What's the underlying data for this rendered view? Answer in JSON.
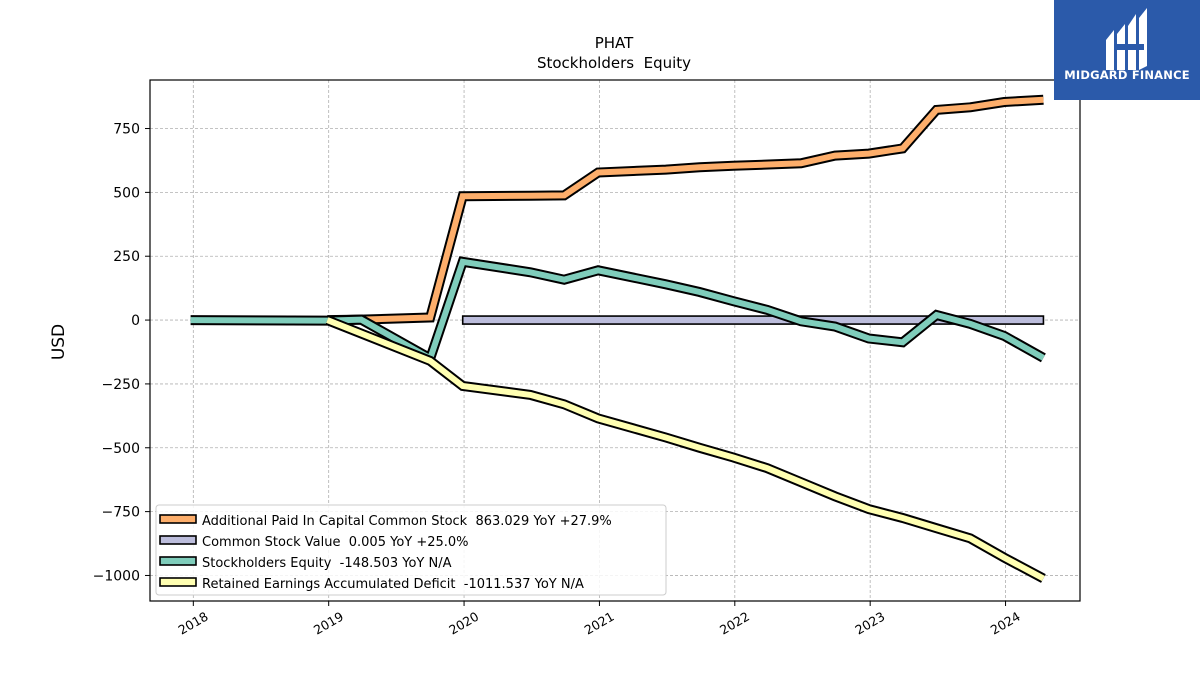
{
  "chart_data": {
    "type": "line",
    "title": "PHAT",
    "subtitle": "Stockholders  Equity",
    "ylabel": "USD",
    "xlabel": "",
    "ylim": [
      -1100,
      940
    ],
    "xlim": [
      2017.68,
      2024.55
    ],
    "yticks": [
      750,
      500,
      250,
      0,
      -250,
      -500,
      -750,
      -1000
    ],
    "ytick_labels": [
      "750",
      "500",
      "250",
      "0",
      "−250",
      "−500",
      "−750",
      "−1000"
    ],
    "xticks": [
      2018,
      2019,
      2020,
      2021,
      2022,
      2023,
      2024
    ],
    "xtick_labels": [
      "2018",
      "2019",
      "2020",
      "2021",
      "2022",
      "2023",
      "2024"
    ],
    "grid": true,
    "legend_position": "lower-left",
    "series": [
      {
        "name": "Additional Paid In Capital Common Stock",
        "legend": "Additional Paid In Capital Common Stock  863.029 YoY +27.9%",
        "color": "#fdae6b",
        "points": [
          [
            2018.99,
            0
          ],
          [
            2019.24,
            2
          ],
          [
            2019.75,
            10
          ],
          [
            2019.99,
            485
          ],
          [
            2020.49,
            487
          ],
          [
            2020.74,
            488
          ],
          [
            2020.99,
            578
          ],
          [
            2021.49,
            589
          ],
          [
            2021.74,
            598
          ],
          [
            2021.99,
            604
          ],
          [
            2022.49,
            614
          ],
          [
            2022.74,
            644
          ],
          [
            2022.99,
            652
          ],
          [
            2023.24,
            672
          ],
          [
            2023.49,
            823
          ],
          [
            2023.74,
            833
          ],
          [
            2023.99,
            854
          ],
          [
            2024.28,
            863
          ]
        ]
      },
      {
        "name": "Common Stock Value",
        "legend": "Common Stock Value  0.005 YoY +25.0%",
        "color": "#bcbddc",
        "points": [
          [
            2019.99,
            0
          ],
          [
            2024.28,
            0
          ]
        ]
      },
      {
        "name": "Stockholders Equity",
        "legend": "Stockholders Equity  -148.503 YoY N/A",
        "color": "#7fcdbb",
        "points": [
          [
            2017.98,
            0
          ],
          [
            2018.99,
            -2
          ],
          [
            2019.24,
            2
          ],
          [
            2019.75,
            -150
          ],
          [
            2019.99,
            228
          ],
          [
            2020.49,
            187
          ],
          [
            2020.74,
            158
          ],
          [
            2020.99,
            195
          ],
          [
            2021.49,
            140
          ],
          [
            2021.74,
            110
          ],
          [
            2021.99,
            74
          ],
          [
            2022.24,
            40
          ],
          [
            2022.49,
            -5
          ],
          [
            2022.74,
            -25
          ],
          [
            2022.99,
            -72
          ],
          [
            2023.24,
            -87
          ],
          [
            2023.49,
            20
          ],
          [
            2023.74,
            -15
          ],
          [
            2023.99,
            -62
          ],
          [
            2024.28,
            -148
          ]
        ]
      },
      {
        "name": "Retained Earnings Accumulated Deficit",
        "legend": "Retained Earnings Accumulated Deficit  -1011.537 YoY N/A",
        "color": "#ffffb2",
        "points": [
          [
            2018.99,
            0
          ],
          [
            2019.75,
            -160
          ],
          [
            2019.99,
            -258
          ],
          [
            2020.49,
            -293
          ],
          [
            2020.74,
            -330
          ],
          [
            2020.99,
            -385
          ],
          [
            2021.49,
            -460
          ],
          [
            2021.74,
            -500
          ],
          [
            2021.99,
            -538
          ],
          [
            2022.24,
            -580
          ],
          [
            2022.49,
            -635
          ],
          [
            2022.74,
            -690
          ],
          [
            2022.99,
            -740
          ],
          [
            2023.24,
            -775
          ],
          [
            2023.49,
            -815
          ],
          [
            2023.74,
            -855
          ],
          [
            2023.99,
            -930
          ],
          [
            2024.28,
            -1012
          ]
        ]
      }
    ]
  },
  "logo": {
    "text": "MIDGARD FINANCE",
    "bg": "#2b5aaa"
  }
}
